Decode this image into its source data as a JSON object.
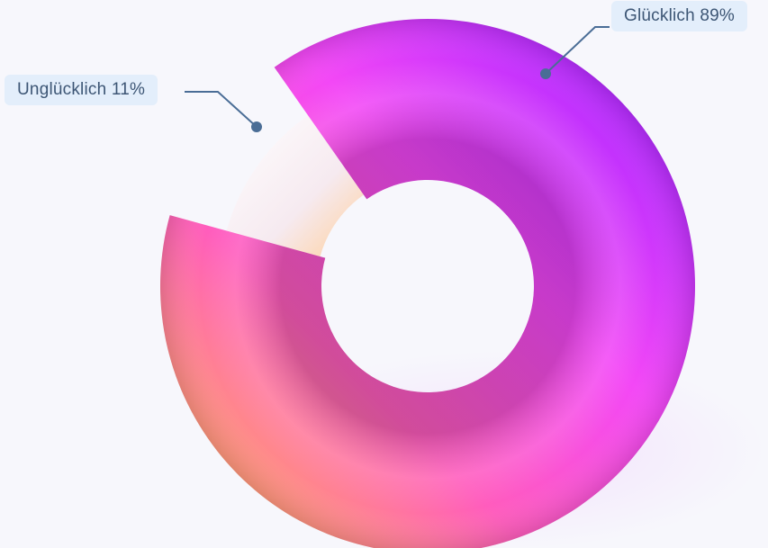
{
  "chart_data": {
    "type": "pie",
    "style": "3d-donut",
    "slices": [
      {
        "label": "Glücklich",
        "value": 89,
        "text": "Glücklich 89%",
        "color": "#e93fff"
      },
      {
        "label": "Unglücklich",
        "value": 11,
        "text": "Unglücklich 11%",
        "color": "#f6eef2"
      }
    ],
    "colors": {
      "happy_gradient": [
        "#ffb14a",
        "#ff5ec0",
        "#f540f5",
        "#b52dff"
      ],
      "unhappy": "#f3ecef",
      "leader": "#4a6d96",
      "label_bg": "#e3eefb",
      "background": "#f7f7fc"
    }
  }
}
